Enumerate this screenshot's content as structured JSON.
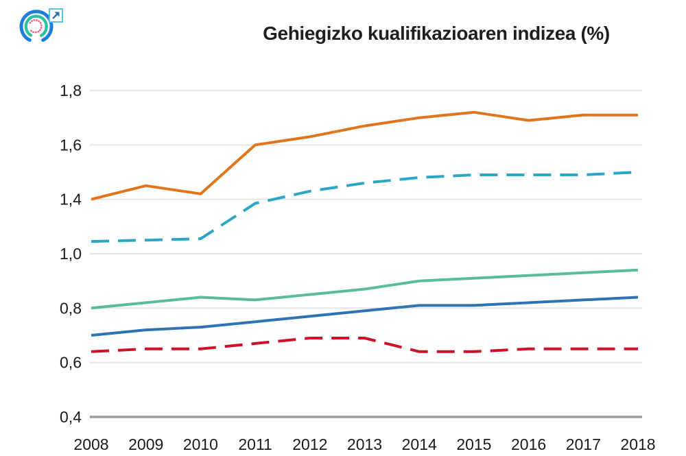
{
  "header": {
    "logo_colors": {
      "outer_ring": "#1c7fd6",
      "middle_ring": "#2bbfa4",
      "inner_dotted_ring": "#ec6a8a"
    },
    "external_link": {
      "border_color": "#56c3e4",
      "arrow_color": "#2a6db0"
    }
  },
  "chart_data": {
    "type": "line",
    "title": "Gehiegizko kualifikazioaren indizea (%)",
    "x_labels": [
      "2008",
      "2009",
      "2010",
      "2011",
      "2012",
      "2013",
      "2014",
      "2015",
      "2016",
      "2017",
      "2018"
    ],
    "y_axis": {
      "ticks": [
        {
          "label": "1,8",
          "value": 1.8
        },
        {
          "label": "1,6",
          "value": 1.6
        },
        {
          "label": "1,4",
          "value": 1.4
        },
        {
          "label": "1,0",
          "value": 1.0
        },
        {
          "label": "0,8",
          "value": 0.8
        },
        {
          "label": "0,6",
          "value": 0.6
        },
        {
          "label": "0,4",
          "value": 0.4
        }
      ]
    },
    "series": [
      {
        "name": "orange-solid-line",
        "color": "#E0751C",
        "style": "solid",
        "values": [
          1.4,
          1.45,
          1.42,
          1.6,
          1.63,
          1.67,
          1.7,
          1.72,
          1.69,
          1.71,
          1.71
        ]
      },
      {
        "name": "teal-dashed-line",
        "color": "#2BA6C6",
        "style": "dashed",
        "values": [
          1.09,
          1.1,
          1.11,
          1.37,
          1.43,
          1.46,
          1.48,
          1.49,
          1.49,
          1.49,
          1.5
        ]
      },
      {
        "name": "green-solid-line",
        "color": "#5ABD98",
        "style": "solid",
        "values": [
          0.8,
          0.82,
          0.84,
          0.83,
          0.85,
          0.87,
          0.9,
          0.91,
          0.92,
          0.93,
          0.94
        ]
      },
      {
        "name": "blue-solid-line",
        "color": "#2E74B5",
        "style": "solid",
        "values": [
          0.7,
          0.72,
          0.73,
          0.75,
          0.77,
          0.79,
          0.81,
          0.81,
          0.82,
          0.83,
          0.84
        ]
      },
      {
        "name": "red-dashed-line",
        "color": "#CE1126",
        "style": "dashed",
        "values": [
          0.64,
          0.65,
          0.65,
          0.67,
          0.69,
          0.69,
          0.64,
          0.64,
          0.65,
          0.65,
          0.65
        ]
      }
    ],
    "style": {
      "grid_color": "#e8e8e8",
      "axis_color": "#9a9a9a",
      "label_color": "#1a1a1a"
    },
    "grid": true,
    "legend": false
  }
}
